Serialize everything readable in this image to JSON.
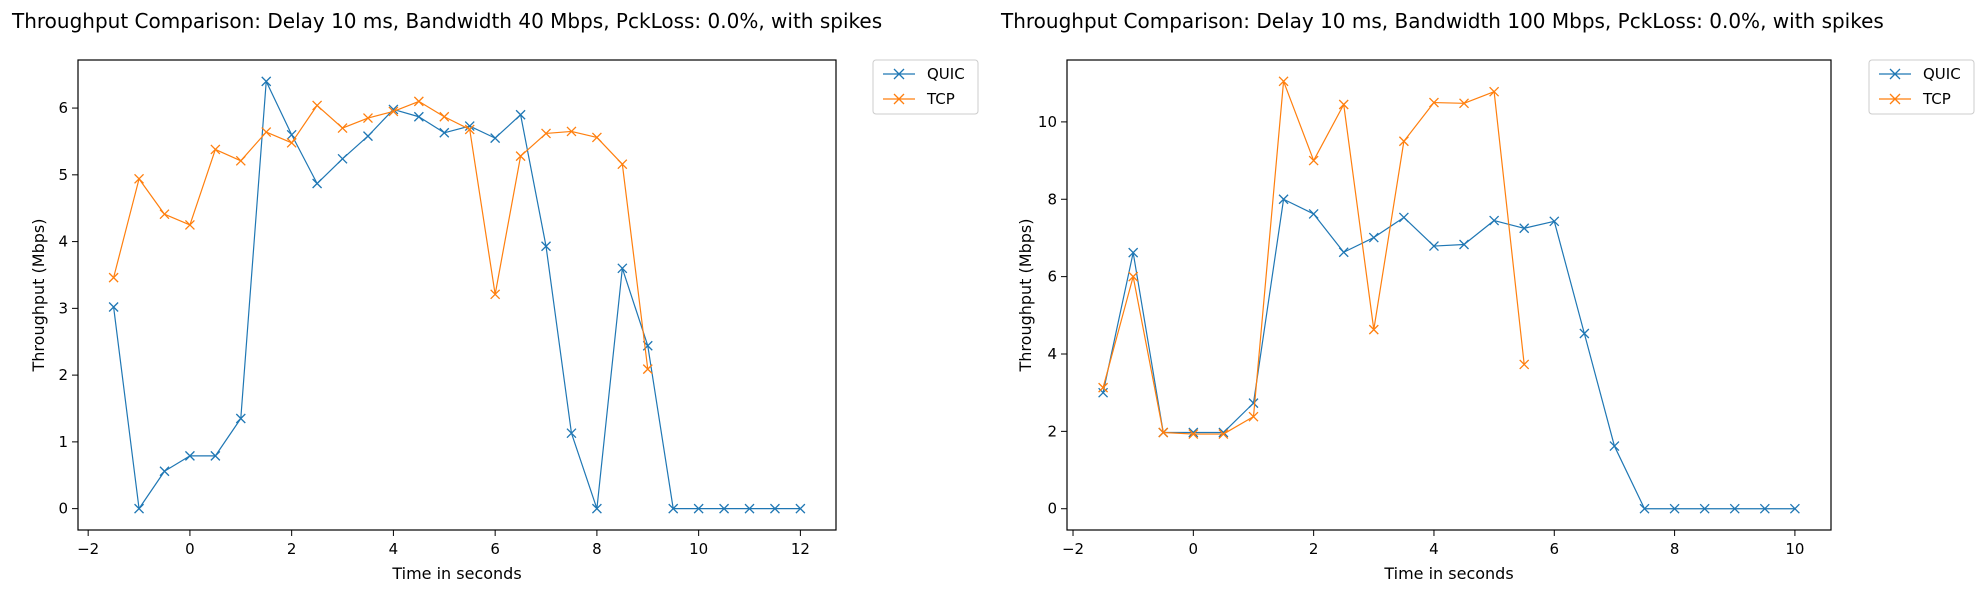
{
  "chart_data": [
    {
      "type": "line",
      "title": "Throughput Comparison: Delay 10 ms, Bandwidth 40 Mbps, PckLoss: 0.0%, with spikes",
      "xlabel": "Time in seconds",
      "ylabel": "Throughput (Mbps)",
      "xlim": [
        -2.2,
        12.7
      ],
      "ylim": [
        -0.32,
        6.72
      ],
      "xticks": [
        -2,
        0,
        2,
        4,
        6,
        8,
        10,
        12
      ],
      "yticks": [
        0,
        1,
        2,
        3,
        4,
        5,
        6
      ],
      "legend_position": "outside-top-right",
      "series": [
        {
          "name": "QUIC",
          "color": "#1f77b4",
          "marker": "x",
          "x": [
            -1.5,
            -1,
            -0.5,
            0,
            0.5,
            1,
            1.5,
            2,
            2.5,
            3,
            3.5,
            4,
            4.5,
            5,
            5.5,
            6,
            6.5,
            7,
            7.5,
            8,
            8.5,
            9,
            9.5,
            10,
            10.5,
            11,
            11.5,
            12
          ],
          "y": [
            3.02,
            0.0,
            0.56,
            0.79,
            0.79,
            1.35,
            6.4,
            5.6,
            4.87,
            5.24,
            5.58,
            5.98,
            5.87,
            5.63,
            5.73,
            5.55,
            5.9,
            3.93,
            1.13,
            0.0,
            3.6,
            2.44,
            0.0,
            0.0,
            0.0,
            0.0,
            0.0,
            0.0
          ]
        },
        {
          "name": "TCP",
          "color": "#ff7f0e",
          "marker": "x",
          "x": [
            -1.5,
            -1,
            -0.5,
            0,
            0.5,
            1,
            1.5,
            2,
            2.5,
            3,
            3.5,
            4,
            4.5,
            5,
            5.5,
            6,
            6.5,
            7,
            7.5,
            8,
            8.5,
            9
          ],
          "y": [
            3.46,
            4.94,
            4.41,
            4.25,
            5.38,
            5.21,
            5.64,
            5.48,
            6.04,
            5.7,
            5.85,
            5.95,
            6.1,
            5.87,
            5.68,
            3.21,
            5.28,
            5.62,
            5.65,
            5.56,
            5.16,
            2.09
          ]
        }
      ]
    },
    {
      "type": "line",
      "title": "Throughput Comparison: Delay 10 ms, Bandwidth 100 Mbps, PckLoss: 0.0%, with spikes",
      "xlabel": "Time in seconds",
      "ylabel": "Throughput (Mbps)",
      "xlim": [
        -2.1,
        10.6
      ],
      "ylim": [
        -0.55,
        11.6
      ],
      "xticks": [
        -2,
        0,
        2,
        4,
        6,
        8,
        10
      ],
      "yticks": [
        0,
        2,
        4,
        6,
        8,
        10
      ],
      "legend_position": "outside-top-right",
      "series": [
        {
          "name": "QUIC",
          "color": "#1f77b4",
          "marker": "x",
          "x": [
            -1.5,
            -1,
            -0.5,
            0,
            0.5,
            1,
            1.5,
            2,
            2.5,
            3,
            3.5,
            4,
            4.5,
            5,
            5.5,
            6,
            6.5,
            7,
            7.5,
            8,
            8.5,
            9,
            9.5,
            10
          ],
          "y": [
            3.0,
            6.62,
            1.97,
            1.97,
            1.97,
            2.73,
            8.0,
            7.62,
            6.63,
            7.01,
            7.53,
            6.79,
            6.83,
            7.45,
            7.25,
            7.43,
            4.53,
            1.62,
            0.0,
            0.0,
            0.0,
            0.0,
            0.0,
            0.0
          ]
        },
        {
          "name": "TCP",
          "color": "#ff7f0e",
          "marker": "x",
          "x": [
            -1.5,
            -1,
            -0.5,
            0,
            0.5,
            1,
            1.5,
            2,
            2.5,
            3,
            3.5,
            4,
            4.5,
            5,
            5.5
          ],
          "y": [
            3.13,
            6.0,
            1.97,
            1.93,
            1.93,
            2.38,
            11.05,
            9.0,
            10.45,
            4.63,
            9.5,
            10.5,
            10.48,
            10.78,
            3.73
          ]
        }
      ]
    }
  ]
}
